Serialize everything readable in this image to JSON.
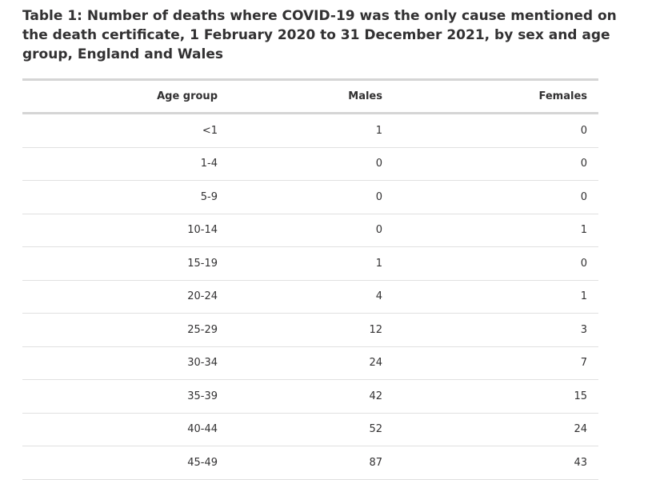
{
  "table": {
    "title": "Table 1: Number of deaths where COVID-19 was the only cause mentioned on the death certificate, 1 February 2020 to 31 December 2021, by sex and age group, England and Wales",
    "headers": [
      "Age group",
      "Males",
      "Females"
    ],
    "rows": [
      [
        "<1",
        "1",
        "0"
      ],
      [
        "1-4",
        "0",
        "0"
      ],
      [
        "5-9",
        "0",
        "0"
      ],
      [
        "10-14",
        "0",
        "1"
      ],
      [
        "15-19",
        "1",
        "0"
      ],
      [
        "20-24",
        "4",
        "1"
      ],
      [
        "25-29",
        "12",
        "3"
      ],
      [
        "30-34",
        "24",
        "7"
      ],
      [
        "35-39",
        "42",
        "15"
      ],
      [
        "40-44",
        "52",
        "24"
      ],
      [
        "45-49",
        "87",
        "43"
      ]
    ]
  },
  "colors": {
    "text": "#323132",
    "rule": "#d5d5d5",
    "row_divider": "#e0e0e0"
  }
}
